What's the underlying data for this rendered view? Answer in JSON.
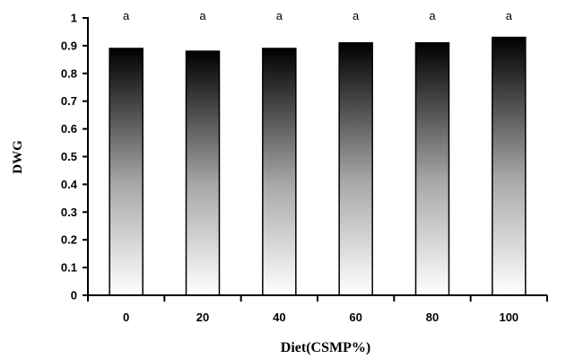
{
  "chart_data": {
    "type": "bar",
    "categories": [
      "0",
      "20",
      "40",
      "60",
      "80",
      "100"
    ],
    "values": [
      0.89,
      0.88,
      0.89,
      0.91,
      0.91,
      0.93
    ],
    "significance_labels": [
      "a",
      "a",
      "a",
      "a",
      "a",
      "a"
    ],
    "xlabel": "Diet(CSMP%)",
    "ylabel": "DWG",
    "ylim": [
      0,
      1
    ],
    "yticks": [
      "0",
      "0.1",
      "0.2",
      "0.3",
      "0.4",
      "0.5",
      "0.6",
      "0.7",
      "0.8",
      "0.9",
      "1"
    ],
    "grid": false,
    "legend": "none",
    "bar_gradient": {
      "top": "#000000",
      "bottom": "#ffffff"
    }
  }
}
